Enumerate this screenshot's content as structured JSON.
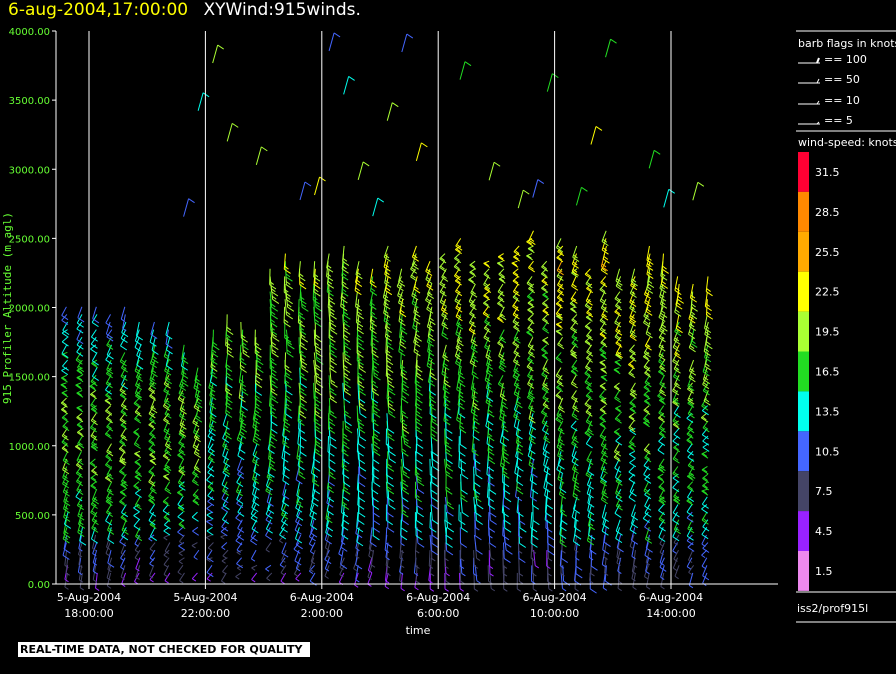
{
  "header": {
    "datetime": "6-aug-2004,17:00:00",
    "plot_name": "XYWind:915winds."
  },
  "colors": {
    "background": "#000000",
    "axis_label": "#66ff33",
    "tick_label": "#66ff33",
    "axis_lines": "#ffffff"
  },
  "chart_data": {
    "type": "wind-barb time-height",
    "ylabel": "915 Profiler Altitude (m agl)",
    "xlabel": "time",
    "ylim": [
      0,
      4000
    ],
    "yticks": [
      "0.00",
      "500.00",
      "1000.00",
      "1500.00",
      "2000.00",
      "2500.00",
      "3000.00",
      "3500.00",
      "4000.00"
    ],
    "xticks": [
      {
        "date": "5-Aug-2004",
        "time": "18:00:00"
      },
      {
        "date": "5-Aug-2004",
        "time": "22:00:00"
      },
      {
        "date": "6-Aug-2004",
        "time": "2:00:00"
      },
      {
        "date": "6-Aug-2004",
        "time": "6:00:00"
      },
      {
        "date": "6-Aug-2004",
        "time": "10:00:00"
      },
      {
        "date": "6-Aug-2004",
        "time": "14:00:00"
      }
    ],
    "x_range_hours": [
      17,
      39.5
    ],
    "barb_interval_minutes": 30,
    "gate_spacing_m": 60
  },
  "legend": {
    "barb_title": "barb flags in knots",
    "barb_items": [
      "== 100",
      "== 50",
      "== 10",
      "== 5"
    ],
    "speed_title": "wind-speed: knots",
    "speed_labels": [
      "31.5",
      "28.5",
      "25.5",
      "22.5",
      "19.5",
      "16.5",
      "13.5",
      "10.5",
      "7.5",
      "4.5",
      "1.5"
    ],
    "speed_colors": [
      "#ff0033",
      "#ff8800",
      "#ffaa00",
      "#ffff00",
      "#aaff33",
      "#22dd22",
      "#00ffee",
      "#4466ff",
      "#444466",
      "#9922ff",
      "#ee88ee"
    ],
    "source": "iss2/prof915l"
  },
  "footer": {
    "note": "REAL-TIME DATA, NOT CHECKED FOR QUALITY"
  }
}
